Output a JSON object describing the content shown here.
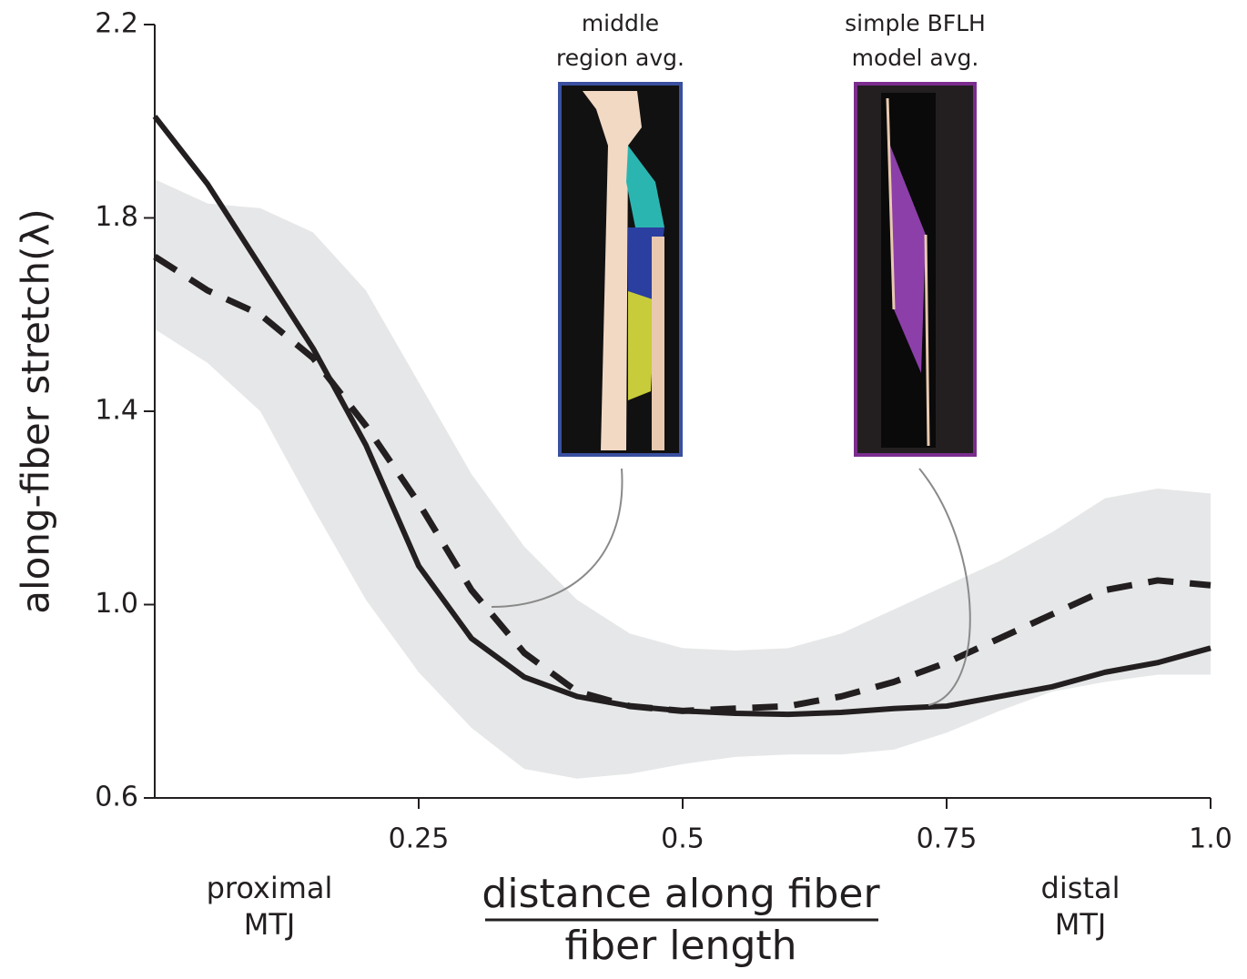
{
  "chart_data": {
    "type": "line",
    "y_label": "along-fiber stretch(λ)",
    "x_label": "distance along fiber",
    "x_label_denominator": "fiber length",
    "x_end_labels": [
      {
        "lines": [
          "proximal",
          "MTJ"
        ]
      },
      {
        "lines": [
          "distal",
          "MTJ"
        ]
      }
    ],
    "insets": [
      {
        "lines": [
          "middle",
          "region avg."
        ],
        "color": "#3a4fa0"
      },
      {
        "lines": [
          "simple BFLH",
          "model avg."
        ],
        "color": "#7b2d8e"
      }
    ],
    "x": [
      0,
      0.05,
      0.1,
      0.15,
      0.2,
      0.25,
      0.3,
      0.35,
      0.4,
      0.45,
      0.5,
      0.55,
      0.6,
      0.65,
      0.7,
      0.75,
      0.8,
      0.85,
      0.9,
      0.95,
      1.0
    ],
    "series": [
      {
        "style": "solid",
        "color": "#231f20",
        "values": [
          2.01,
          1.87,
          1.7,
          1.53,
          1.33,
          1.08,
          0.93,
          0.85,
          0.81,
          0.79,
          0.78,
          0.775,
          0.773,
          0.777,
          0.785,
          0.79,
          0.81,
          0.83,
          0.86,
          0.88,
          0.91
        ]
      },
      {
        "style": "dashed",
        "color": "#231f20",
        "values": [
          1.72,
          1.65,
          1.6,
          1.51,
          1.37,
          1.21,
          1.03,
          0.9,
          0.82,
          0.79,
          0.78,
          0.785,
          0.79,
          0.81,
          0.84,
          0.88,
          0.93,
          0.98,
          1.03,
          1.05,
          1.04
        ]
      }
    ],
    "band": {
      "color": "#e6e7e8",
      "upper": [
        1.88,
        1.83,
        1.82,
        1.77,
        1.65,
        1.46,
        1.27,
        1.12,
        1.01,
        0.94,
        0.91,
        0.905,
        0.91,
        0.94,
        0.99,
        1.04,
        1.09,
        1.15,
        1.22,
        1.24,
        1.23
      ],
      "lower": [
        1.57,
        1.5,
        1.4,
        1.2,
        1.01,
        0.86,
        0.745,
        0.66,
        0.64,
        0.65,
        0.67,
        0.685,
        0.69,
        0.69,
        0.7,
        0.735,
        0.78,
        0.82,
        0.84,
        0.855,
        0.855
      ]
    },
    "xlim": [
      0,
      1
    ],
    "xticks": [
      0.25,
      0.5,
      0.75,
      {
        "value": 1,
        "label": "1.0"
      }
    ],
    "ylim": [
      0.6,
      2.2
    ],
    "yticks": [
      0.6,
      {
        "value": 1,
        "label": "1.0"
      },
      1.4,
      1.8,
      2.2
    ]
  }
}
